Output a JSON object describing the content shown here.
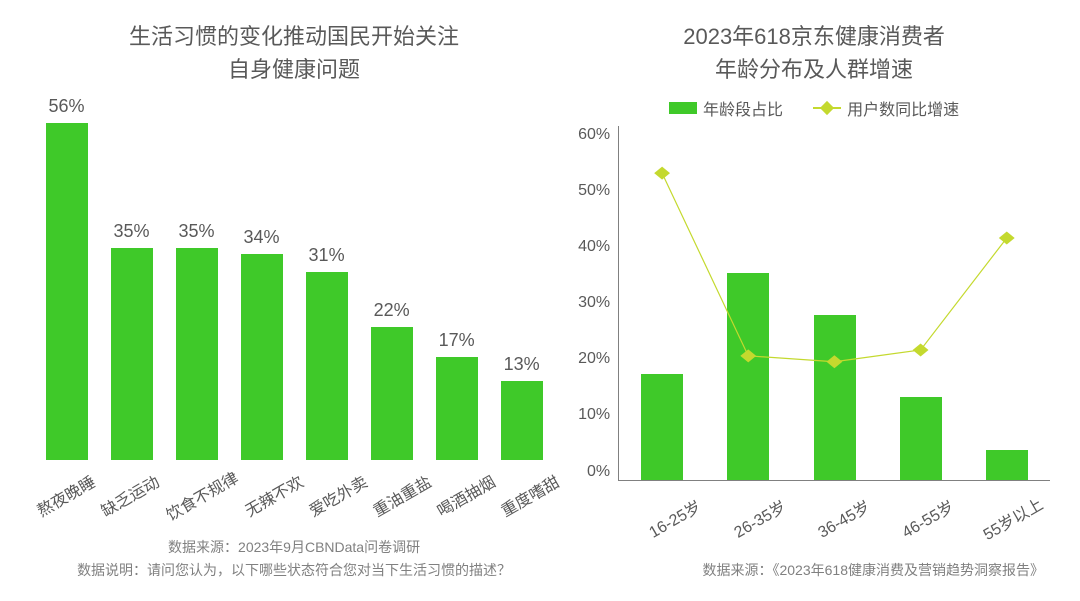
{
  "colors": {
    "bar": "#3fc929",
    "line": "#c4d92e",
    "text": "#595959",
    "footer": "#808080",
    "background": "#ffffff"
  },
  "left": {
    "title_line1": "生活习惯的变化推动国民开始关注",
    "title_line2": "自身健康问题",
    "ymax": 60,
    "bars": [
      {
        "cat": "熬夜晚睡",
        "val": 56,
        "label": "56%"
      },
      {
        "cat": "缺乏运动",
        "val": 35,
        "label": "35%"
      },
      {
        "cat": "饮食不规律",
        "val": 35,
        "label": "35%"
      },
      {
        "cat": "无辣不欢",
        "val": 34,
        "label": "34%"
      },
      {
        "cat": "爱吃外卖",
        "val": 31,
        "label": "31%"
      },
      {
        "cat": "重油重盐",
        "val": 22,
        "label": "22%"
      },
      {
        "cat": "喝酒抽烟",
        "val": 17,
        "label": "17%"
      },
      {
        "cat": "重度嗜甜",
        "val": 13,
        "label": "13%"
      }
    ],
    "footer1": "数据来源：2023年9月CBNData问卷调研",
    "footer2": "数据说明：请问您认为，以下哪些状态符合您对当下生活习惯的描述？"
  },
  "right": {
    "title_line1": "2023年618京东健康消费者",
    "title_line2": "年龄分布及人群增速",
    "legend_bar": "年龄段占比",
    "legend_line": "用户数同比增速",
    "ymax": 60,
    "yticks": [
      "60%",
      "50%",
      "40%",
      "30%",
      "20%",
      "10%",
      "0%"
    ],
    "categories": [
      "16-25岁",
      "26-35岁",
      "36-45岁",
      "46-55岁",
      "55岁以上"
    ],
    "bar_vals": [
      18,
      35,
      28,
      14,
      5
    ],
    "line_vals": [
      52,
      21,
      20,
      22,
      41
    ],
    "footer": "数据来源：《2023年618健康消费及营销趋势洞察报告》"
  }
}
